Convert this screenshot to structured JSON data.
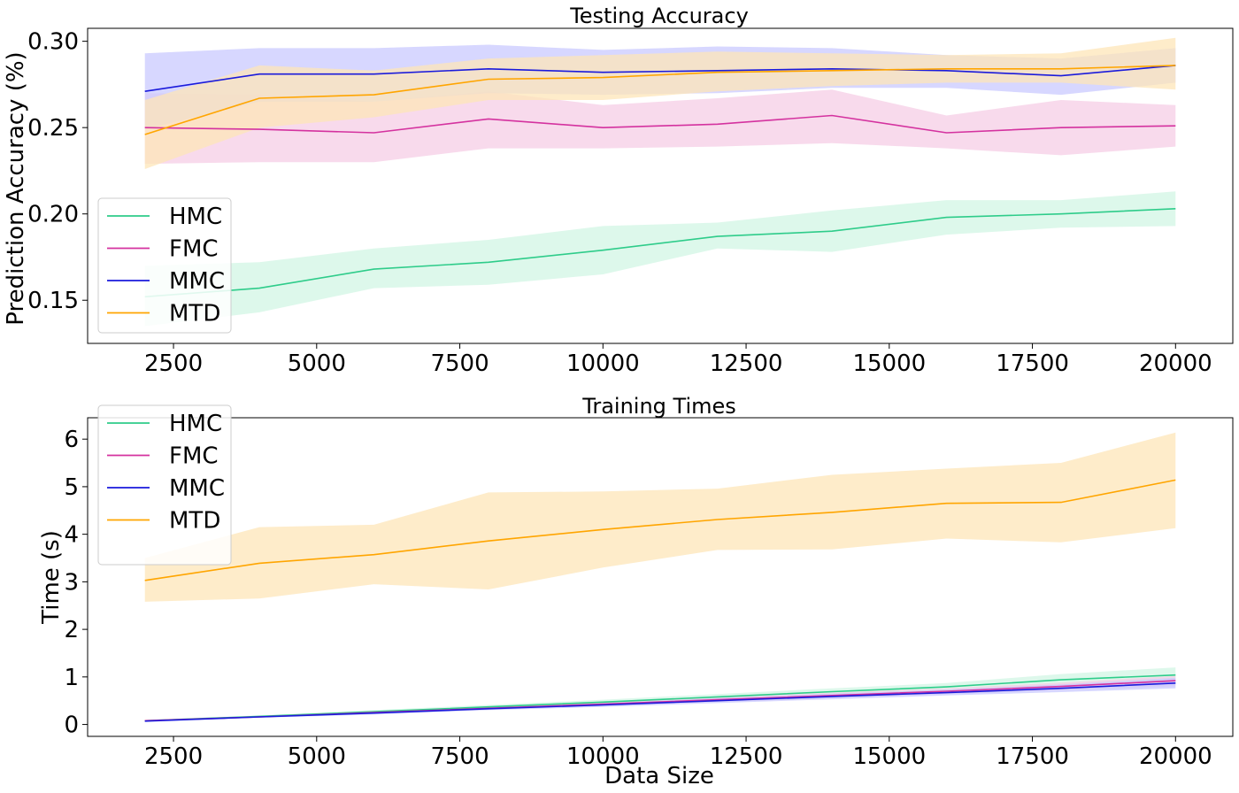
{
  "chart_data": [
    {
      "type": "line",
      "title": "Testing Accuracy",
      "xlabel": "",
      "ylabel": "Prediction Accuracy (%)",
      "x": [
        2000,
        4000,
        6000,
        8000,
        10000,
        12000,
        14000,
        16000,
        18000,
        20000
      ],
      "xlim": [
        1000,
        21000
      ],
      "ylim": [
        0.125,
        0.3075
      ],
      "xticks": [
        2500,
        5000,
        7500,
        10000,
        12500,
        15000,
        17500,
        20000
      ],
      "xtick_labels": [
        "2500",
        "5000",
        "7500",
        "10000",
        "12500",
        "15000",
        "17500",
        "20000"
      ],
      "yticks": [
        0.15,
        0.2,
        0.25,
        0.3
      ],
      "ytick_labels": [
        "0.15",
        "0.20",
        "0.25",
        "0.30"
      ],
      "grid": false,
      "legend": "lower left",
      "series": [
        {
          "name": "HMC",
          "color": "#2ecc8a",
          "fill": "#d2f5e4",
          "values": [
            0.152,
            0.157,
            0.168,
            0.172,
            0.179,
            0.187,
            0.19,
            0.198,
            0.2,
            0.203
          ],
          "lower": [
            0.135,
            0.143,
            0.157,
            0.159,
            0.165,
            0.18,
            0.178,
            0.188,
            0.192,
            0.193
          ],
          "upper": [
            0.17,
            0.172,
            0.18,
            0.185,
            0.193,
            0.195,
            0.202,
            0.208,
            0.208,
            0.213
          ]
        },
        {
          "name": "FMC",
          "color": "#d4329f",
          "fill": "#f6cde6",
          "values": [
            0.25,
            0.249,
            0.247,
            0.255,
            0.25,
            0.252,
            0.257,
            0.247,
            0.25,
            0.251
          ],
          "lower": [
            0.229,
            0.23,
            0.23,
            0.238,
            0.238,
            0.239,
            0.241,
            0.238,
            0.234,
            0.239
          ],
          "upper": [
            0.27,
            0.269,
            0.265,
            0.271,
            0.263,
            0.267,
            0.272,
            0.257,
            0.266,
            0.263
          ]
        },
        {
          "name": "MMC",
          "color": "#1a1adb",
          "fill": "#c9c9ff",
          "values": [
            0.271,
            0.281,
            0.281,
            0.284,
            0.282,
            0.283,
            0.284,
            0.283,
            0.28,
            0.286
          ],
          "lower": [
            0.249,
            0.265,
            0.265,
            0.27,
            0.269,
            0.27,
            0.273,
            0.273,
            0.269,
            0.276
          ],
          "upper": [
            0.293,
            0.296,
            0.296,
            0.298,
            0.295,
            0.297,
            0.296,
            0.292,
            0.29,
            0.296
          ]
        },
        {
          "name": "MTD",
          "color": "#ffa500",
          "fill": "#fde5b8",
          "values": [
            0.246,
            0.267,
            0.269,
            0.278,
            0.279,
            0.282,
            0.283,
            0.284,
            0.284,
            0.286
          ],
          "lower": [
            0.226,
            0.25,
            0.256,
            0.266,
            0.266,
            0.271,
            0.274,
            0.276,
            0.276,
            0.272
          ],
          "upper": [
            0.266,
            0.286,
            0.283,
            0.29,
            0.292,
            0.294,
            0.293,
            0.292,
            0.293,
            0.302
          ]
        }
      ]
    },
    {
      "type": "line",
      "title": "Training Times",
      "xlabel": "Data Size",
      "ylabel": "Time (s)",
      "x": [
        2000,
        4000,
        6000,
        8000,
        10000,
        12000,
        14000,
        16000,
        18000,
        20000
      ],
      "xlim": [
        1000,
        21000
      ],
      "ylim": [
        -0.25,
        6.45
      ],
      "xticks": [
        2500,
        5000,
        7500,
        10000,
        12500,
        15000,
        17500,
        20000
      ],
      "xtick_labels": [
        "2500",
        "5000",
        "7500",
        "10000",
        "12500",
        "15000",
        "17500",
        "20000"
      ],
      "yticks": [
        0,
        1,
        2,
        3,
        4,
        5,
        6
      ],
      "ytick_labels": [
        "0",
        "1",
        "2",
        "3",
        "4",
        "5",
        "6"
      ],
      "grid": false,
      "legend": "upper left",
      "series": [
        {
          "name": "HMC",
          "color": "#2ecc8a",
          "fill": "#d2f5e4",
          "values": [
            0.08,
            0.17,
            0.27,
            0.37,
            0.47,
            0.58,
            0.69,
            0.79,
            0.94,
            1.04
          ],
          "lower": [
            0.07,
            0.15,
            0.24,
            0.33,
            0.42,
            0.52,
            0.62,
            0.71,
            0.82,
            0.88
          ],
          "upper": [
            0.09,
            0.19,
            0.3,
            0.41,
            0.52,
            0.64,
            0.76,
            0.87,
            1.06,
            1.2
          ]
        },
        {
          "name": "FMC",
          "color": "#d4329f",
          "fill": "#f6cde6",
          "values": [
            0.08,
            0.16,
            0.25,
            0.34,
            0.43,
            0.52,
            0.61,
            0.7,
            0.8,
            0.92
          ],
          "lower": [
            0.07,
            0.14,
            0.22,
            0.31,
            0.39,
            0.47,
            0.55,
            0.64,
            0.72,
            0.8
          ],
          "upper": [
            0.09,
            0.18,
            0.28,
            0.37,
            0.47,
            0.57,
            0.67,
            0.76,
            0.88,
            1.02
          ]
        },
        {
          "name": "MMC",
          "color": "#1a1adb",
          "fill": "#c9c9ff",
          "values": [
            0.07,
            0.16,
            0.24,
            0.33,
            0.41,
            0.5,
            0.59,
            0.67,
            0.76,
            0.87
          ],
          "lower": [
            0.06,
            0.14,
            0.21,
            0.3,
            0.37,
            0.45,
            0.53,
            0.61,
            0.68,
            0.76
          ],
          "upper": [
            0.08,
            0.18,
            0.27,
            0.36,
            0.45,
            0.55,
            0.65,
            0.73,
            0.84,
            0.98
          ]
        },
        {
          "name": "MTD",
          "color": "#ffa500",
          "fill": "#fde5b8",
          "values": [
            3.03,
            3.39,
            3.57,
            3.86,
            4.1,
            4.31,
            4.46,
            4.65,
            4.67,
            5.14
          ],
          "lower": [
            2.58,
            2.65,
            2.95,
            2.84,
            3.3,
            3.67,
            3.68,
            3.91,
            3.83,
            4.13
          ],
          "upper": [
            3.5,
            4.15,
            4.2,
            4.88,
            4.9,
            4.96,
            5.25,
            5.38,
            5.5,
            6.14
          ]
        }
      ]
    }
  ]
}
